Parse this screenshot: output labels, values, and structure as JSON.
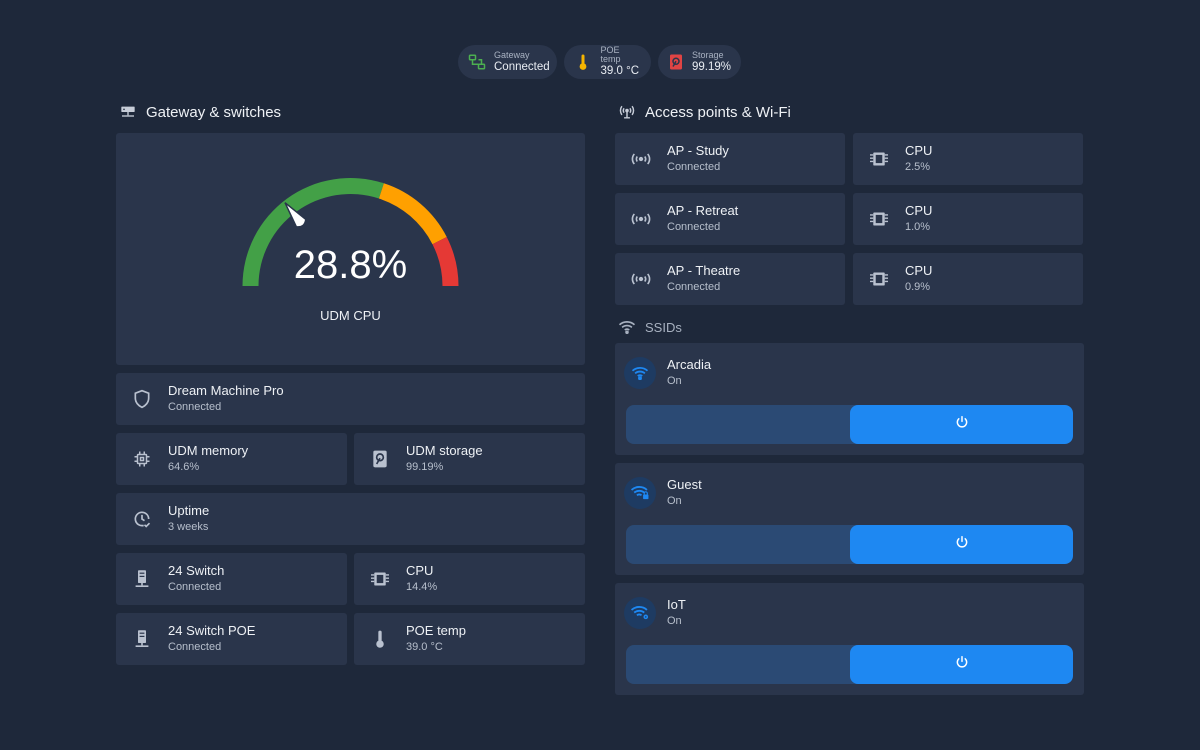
{
  "status_badges": [
    {
      "label": "Gateway",
      "value": "Connected",
      "icon": "network-icon",
      "color": "#4caf50"
    },
    {
      "label": "POE temp",
      "value": "39.0 °C",
      "icon": "thermometer-icon",
      "color": "#f5b400"
    },
    {
      "label": "Storage",
      "value": "99.19%",
      "icon": "storage-icon",
      "color": "#e04444"
    }
  ],
  "gateway_section": {
    "title": "Gateway & switches",
    "gauge": {
      "value_text": "28.8%",
      "value": 28.8,
      "min": 0,
      "max": 100,
      "label": "UDM CPU",
      "colors": {
        "green": "#43a047",
        "yellow": "#ffa000",
        "red": "#e53935"
      }
    },
    "tiles": {
      "dream_machine": {
        "name": "Dream Machine Pro",
        "state": "Connected",
        "icon": "shield-icon"
      },
      "udm_memory": {
        "name": "UDM memory",
        "state": "64.6%",
        "icon": "chip-icon"
      },
      "udm_storage": {
        "name": "UDM storage",
        "state": "99.19%",
        "icon": "harddisk-icon"
      },
      "uptime": {
        "name": "Uptime",
        "state": "3 weeks",
        "icon": "clock-check-icon"
      },
      "switch24": {
        "name": "24 Switch",
        "state": "Connected",
        "icon": "switch-icon"
      },
      "switch24_cpu": {
        "name": "CPU",
        "state": "14.4%",
        "icon": "cpu-icon"
      },
      "switch24poe": {
        "name": "24 Switch POE",
        "state": "Connected",
        "icon": "switch-icon"
      },
      "poe_temp": {
        "name": "POE temp",
        "state": "39.0 °C",
        "icon": "thermometer-icon"
      }
    }
  },
  "ap_section": {
    "title": "Access points & Wi-Fi",
    "access_points": [
      {
        "name": "AP - Study",
        "state": "Connected",
        "cpu_label": "CPU",
        "cpu": "2.5%"
      },
      {
        "name": "AP - Retreat",
        "state": "Connected",
        "cpu_label": "CPU",
        "cpu": "1.0%"
      },
      {
        "name": "AP - Theatre",
        "state": "Connected",
        "cpu_label": "CPU",
        "cpu": "0.9%"
      }
    ],
    "ssids_title": "SSIDs",
    "ssids": [
      {
        "name": "Arcadia",
        "state": "On",
        "icon": "wifi-icon",
        "toggle_on": true
      },
      {
        "name": "Guest",
        "state": "On",
        "icon": "wifi-lock-icon",
        "toggle_on": true
      },
      {
        "name": "IoT",
        "state": "On",
        "icon": "wifi-cog-icon",
        "toggle_on": true
      }
    ]
  },
  "colors": {
    "background": "#1e283a",
    "card": "#2a354b",
    "accent": "#1e88f2",
    "icon": "#b9c1cf"
  }
}
